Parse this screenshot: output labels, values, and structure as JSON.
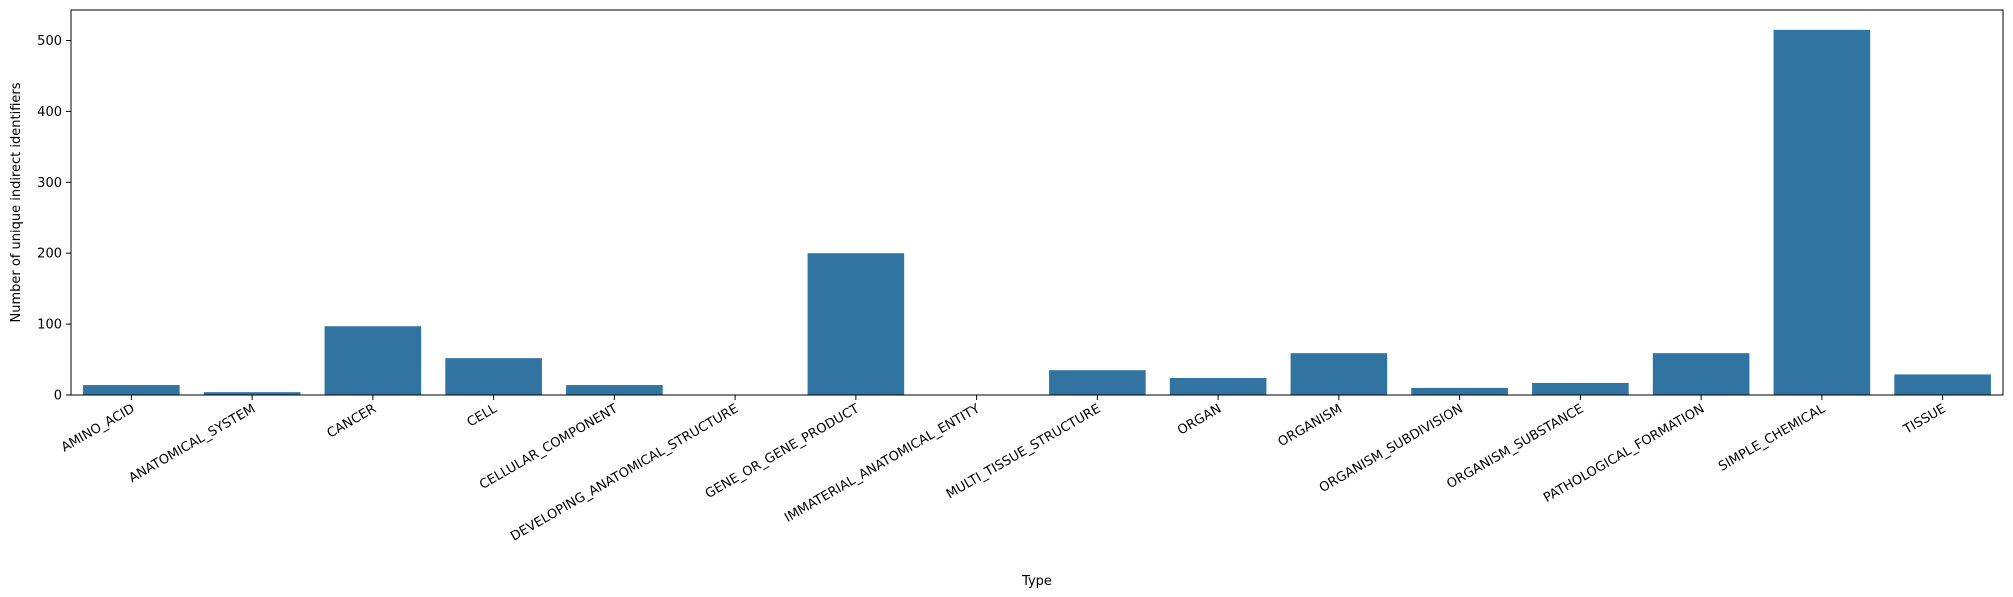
{
  "chart_data": {
    "type": "bar",
    "categories": [
      "AMINO_ACID",
      "ANATOMICAL_SYSTEM",
      "CANCER",
      "CELL",
      "CELLULAR_COMPONENT",
      "DEVELOPING_ANATOMICAL_STRUCTURE",
      "GENE_OR_GENE_PRODUCT",
      "IMMATERIAL_ANATOMICAL_ENTITY",
      "MULTI_TISSUE_STRUCTURE",
      "ORGAN",
      "ORGANISM",
      "ORGANISM_SUBDIVISION",
      "ORGANISM_SUBSTANCE",
      "PATHOLOGICAL_FORMATION",
      "SIMPLE_CHEMICAL",
      "TISSUE"
    ],
    "values": [
      14,
      4,
      97,
      52,
      14,
      0,
      200,
      0,
      35,
      24,
      59,
      10,
      17,
      59,
      515,
      29
    ],
    "title": "",
    "xlabel": "Type",
    "ylabel": "Number of unique indirect identifiers",
    "ylim": [
      0,
      543
    ],
    "yticks": [
      0,
      100,
      200,
      300,
      400,
      500
    ],
    "bar_color": "#3274a1",
    "grid": false,
    "legend": "none"
  }
}
